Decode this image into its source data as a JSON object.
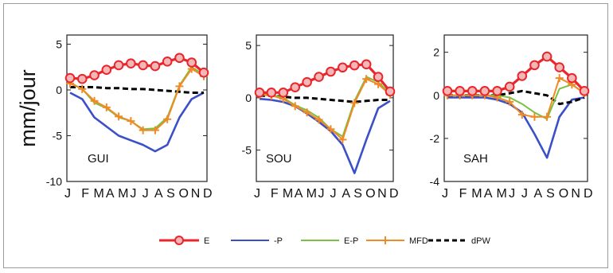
{
  "figure": {
    "ylabel": "mm/jour",
    "month_labels": [
      "J",
      "F",
      "M",
      "A",
      "M",
      "J",
      "J",
      "A",
      "S",
      "O",
      "N",
      "D"
    ],
    "legend_position": "bottom-center"
  },
  "colors": {
    "E": "#e8262c",
    "-P": "#3b4fc8",
    "E-P": "#7bc043",
    "MFD": "#f08a24",
    "dPW": "#000000"
  },
  "chart_data": [
    {
      "type": "line",
      "title": "GUI",
      "x": [
        "J",
        "F",
        "M",
        "A",
        "M",
        "J",
        "J",
        "A",
        "S",
        "O",
        "N",
        "D"
      ],
      "ylim": [
        -10,
        6
      ],
      "yticks": [
        -10,
        -5,
        0,
        5
      ],
      "series": [
        {
          "name": "E",
          "values": [
            1.3,
            1.2,
            1.6,
            2.2,
            2.7,
            2.9,
            2.7,
            2.6,
            3.1,
            3.5,
            3.0,
            1.9
          ]
        },
        {
          "name": "-P",
          "values": [
            -0.3,
            -1.0,
            -3.0,
            -4.0,
            -5.0,
            -5.5,
            -6.0,
            -6.7,
            -6.0,
            -3.0,
            -1.0,
            -0.3
          ]
        },
        {
          "name": "E-P",
          "values": [
            0.8,
            0.1,
            -1.4,
            -2.0,
            -3.0,
            -3.4,
            -4.3,
            -4.2,
            -3.0,
            0.5,
            2.5,
            1.7
          ]
        },
        {
          "name": "MFD",
          "values": [
            0.7,
            0.1,
            -1.2,
            -1.9,
            -2.9,
            -3.4,
            -4.4,
            -4.4,
            -3.2,
            0.4,
            2.3,
            1.5
          ]
        },
        {
          "name": "dPW",
          "values": [
            0.3,
            0.3,
            0.3,
            0.2,
            0.2,
            0.1,
            0.1,
            0.0,
            -0.1,
            -0.2,
            -0.3,
            -0.3
          ]
        }
      ]
    },
    {
      "type": "line",
      "title": "SOU",
      "x": [
        "J",
        "F",
        "M",
        "A",
        "M",
        "J",
        "J",
        "A",
        "S",
        "O",
        "N",
        "D"
      ],
      "ylim": [
        -8,
        6
      ],
      "yticks": [
        -5,
        0,
        5
      ],
      "series": [
        {
          "name": "E",
          "values": [
            0.5,
            0.5,
            0.5,
            1.0,
            1.5,
            2.0,
            2.5,
            2.9,
            3.1,
            3.2,
            2.0,
            0.6
          ]
        },
        {
          "name": "-P",
          "values": [
            -0.1,
            -0.2,
            -0.4,
            -0.8,
            -1.5,
            -2.3,
            -3.2,
            -4.5,
            -7.2,
            -4.0,
            -1.0,
            -0.3
          ]
        },
        {
          "name": "E-P",
          "values": [
            0.4,
            0.3,
            0.0,
            -0.7,
            -1.2,
            -1.9,
            -3.0,
            -3.7,
            -0.3,
            2.0,
            1.5,
            0.4
          ]
        },
        {
          "name": "MFD",
          "values": [
            0.3,
            0.2,
            -0.1,
            -0.8,
            -1.4,
            -2.1,
            -3.0,
            -4.0,
            -0.5,
            1.8,
            1.3,
            0.3
          ]
        },
        {
          "name": "dPW",
          "values": [
            0.2,
            0.2,
            0.1,
            0.0,
            0.0,
            -0.1,
            -0.2,
            -0.3,
            -0.4,
            -0.3,
            -0.2,
            -0.2
          ]
        }
      ]
    },
    {
      "type": "line",
      "title": "SAH",
      "x": [
        "J",
        "F",
        "M",
        "A",
        "M",
        "J",
        "J",
        "A",
        "S",
        "O",
        "N",
        "D"
      ],
      "ylim": [
        -4,
        2.8
      ],
      "yticks": [
        -4,
        -2,
        0,
        2
      ],
      "series": [
        {
          "name": "E",
          "values": [
            0.2,
            0.2,
            0.2,
            0.2,
            0.2,
            0.4,
            0.9,
            1.4,
            1.8,
            1.3,
            0.8,
            0.2
          ]
        },
        {
          "name": "-P",
          "values": [
            -0.1,
            -0.1,
            -0.1,
            -0.1,
            -0.2,
            -0.4,
            -0.8,
            -1.8,
            -2.9,
            -1.0,
            -0.2,
            -0.1
          ]
        },
        {
          "name": "E-P",
          "values": [
            0.0,
            0.0,
            0.0,
            0.0,
            0.0,
            -0.1,
            -0.4,
            -0.8,
            -1.1,
            0.3,
            0.5,
            0.1
          ]
        },
        {
          "name": "MFD",
          "values": [
            0.0,
            0.0,
            0.0,
            0.0,
            -0.1,
            -0.3,
            -0.9,
            -1.0,
            -1.0,
            0.8,
            0.5,
            0.1
          ]
        },
        {
          "name": "dPW",
          "values": [
            0.0,
            0.0,
            0.0,
            0.0,
            0.0,
            0.1,
            0.2,
            0.1,
            0.0,
            -0.4,
            -0.3,
            -0.1
          ]
        }
      ]
    }
  ],
  "legend": [
    {
      "name": "E",
      "label": "E",
      "marker": "circle"
    },
    {
      "name": "-P",
      "label": "-P",
      "marker": "none"
    },
    {
      "name": "E-P",
      "label": "E-P",
      "marker": "none"
    },
    {
      "name": "MFD",
      "label": "MFD",
      "marker": "plus"
    },
    {
      "name": "dPW",
      "label": "dPW",
      "marker": "dashed"
    }
  ]
}
